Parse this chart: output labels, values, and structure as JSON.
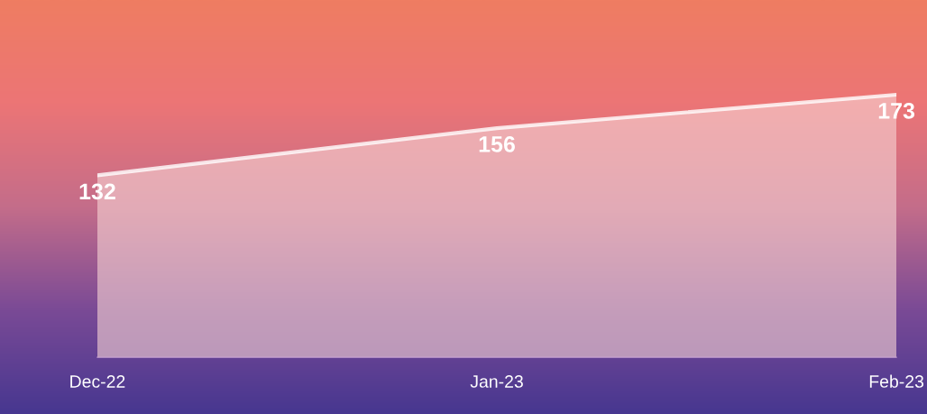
{
  "chart_data": {
    "type": "area",
    "categories": [
      "Dec-22",
      "Jan-23",
      "Feb-23"
    ],
    "series": [
      {
        "color": "#f7d3d3",
        "values": [
          132,
          156,
          173
        ]
      }
    ],
    "tick_labels": "x",
    "data_labels": true,
    "grid": false,
    "legend": false
  }
}
